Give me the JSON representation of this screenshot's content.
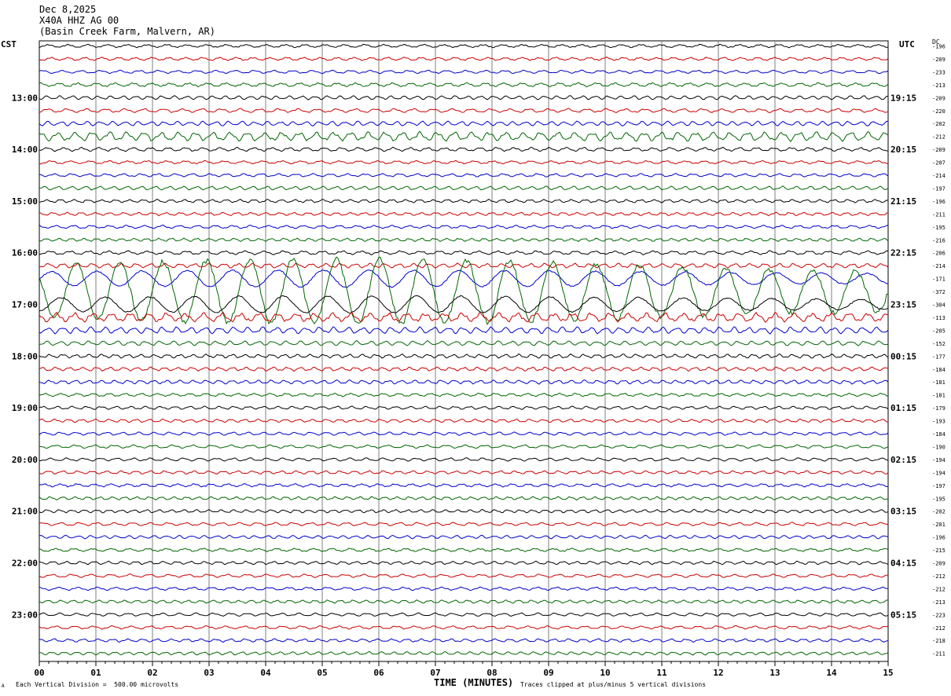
{
  "header": {
    "date": "Dec 8,2025",
    "station": "X40A HHZ AG 00",
    "location": "(Basin Creek Farm, Malvern, AR)"
  },
  "axes": {
    "left_label": "CST",
    "right_label": "UTC",
    "dc_label": "DC",
    "x_title": "TIME (MINUTES)"
  },
  "footer": {
    "scale_note": "Each Vertical Division =  500.00 microvolts",
    "clip_note": "Traces clipped at plus/minus 5 vertical divisions",
    "corner_mark": "A"
  },
  "colors": {
    "trace_cycle": [
      "#000000",
      "#cc0000",
      "#0000cc",
      "#006600"
    ],
    "grid": "#7f7f7f"
  },
  "chart_data": {
    "type": "line",
    "title": "",
    "xlabel": "TIME (MINUTES)",
    "xlim": [
      0,
      15
    ],
    "x_ticks": [
      "00",
      "01",
      "02",
      "03",
      "04",
      "05",
      "06",
      "07",
      "08",
      "09",
      "10",
      "11",
      "12",
      "13",
      "14",
      "15"
    ],
    "rows_per_hour": 4,
    "left_hour_labels": [
      "13:00",
      "14:00",
      "15:00",
      "16:00",
      "17:00",
      "18:00",
      "19:00",
      "20:00",
      "21:00",
      "22:00",
      "23:00"
    ],
    "right_hour_labels": [
      "19:15",
      "20:15",
      "21:15",
      "22:15",
      "23:15",
      "00:15",
      "01:15",
      "02:15",
      "03:15",
      "04:15",
      "05:15"
    ],
    "first_labeled_row": 4,
    "trace_count": 48,
    "dc_offsets": [
      -196,
      -209,
      -233,
      -213,
      -209,
      -220,
      -202,
      -212,
      -209,
      -207,
      -214,
      -197,
      -196,
      -211,
      -195,
      -216,
      -206,
      -214,
      -171,
      -372,
      -304,
      -113,
      -205,
      -152,
      -177,
      -184,
      -181,
      -181,
      -179,
      -193,
      -184,
      -190,
      -194,
      -194,
      -197,
      -195,
      -202,
      -201,
      -196,
      -215,
      -209,
      -212,
      -212,
      -213,
      -223,
      -212,
      -218,
      -211
    ],
    "trace_amplitude_divisions": [
      0.25,
      0.25,
      0.25,
      0.3,
      0.3,
      0.3,
      0.35,
      0.7,
      0.3,
      0.25,
      0.25,
      0.3,
      0.25,
      0.25,
      0.25,
      0.25,
      0.3,
      0.35,
      1.3,
      5,
      1.3,
      0.7,
      0.5,
      0.35,
      0.3,
      0.3,
      0.3,
      0.25,
      0.25,
      0.25,
      0.25,
      0.25,
      0.25,
      0.25,
      0.25,
      0.25,
      0.25,
      0.25,
      0.25,
      0.25,
      0.25,
      0.25,
      0.25,
      0.25,
      0.25,
      0.25,
      0.25,
      0.25
    ]
  }
}
